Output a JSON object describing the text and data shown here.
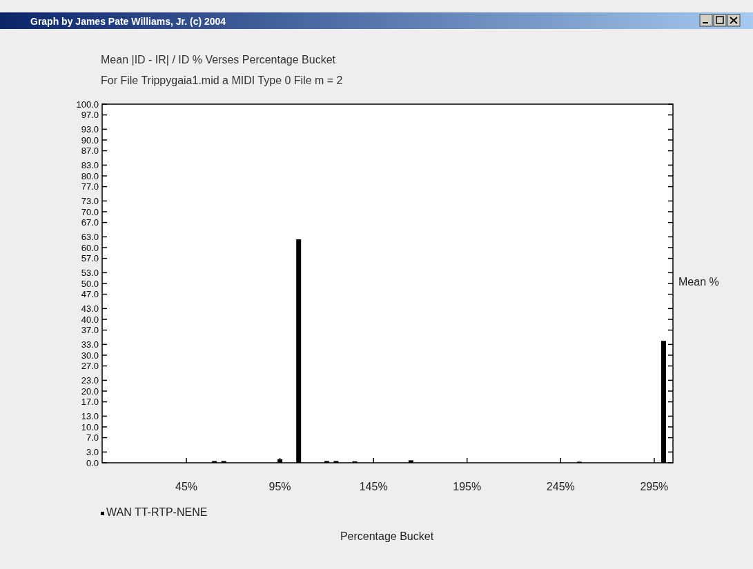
{
  "chart_data": {
    "type": "bar",
    "title": "Mean |ID - IR| / ID % Verses Percentage Bucket",
    "subtitle": "For File Trippygaia1.mid a MIDI Type 0 File m = 2",
    "xlabel": "Percentage Bucket",
    "ylabel": "Mean %",
    "annotations": [
      "Graph by James Pate Williams, Jr. (c) 2004"
    ],
    "x": [
      60,
      65,
      95,
      105,
      120,
      125,
      135,
      165,
      255,
      300
    ],
    "series": [
      {
        "name": "WAN TT-RTP-NENE",
        "color": "#000000",
        "values": [
          0.5,
          0.5,
          1.0,
          62.3,
          0.5,
          0.5,
          0.4,
          0.7,
          0.3,
          34.0
        ]
      }
    ],
    "xlim": [
      0,
      305
    ],
    "xticks": [
      {
        "value": 45,
        "label": "45%"
      },
      {
        "value": 95,
        "label": "95%"
      },
      {
        "value": 145,
        "label": "145%"
      },
      {
        "value": 195,
        "label": "195%"
      },
      {
        "value": 245,
        "label": "245%"
      },
      {
        "value": 295,
        "label": "295%"
      }
    ],
    "ylim": [
      0,
      100
    ],
    "yticks": [
      {
        "value": 0,
        "label": "0.0"
      },
      {
        "value": 3,
        "label": "3.0"
      },
      {
        "value": 7,
        "label": "7.0"
      },
      {
        "value": 10,
        "label": "10.0"
      },
      {
        "value": 13,
        "label": "13.0"
      },
      {
        "value": 17,
        "label": "17.0"
      },
      {
        "value": 20,
        "label": "20.0"
      },
      {
        "value": 23,
        "label": "23.0"
      },
      {
        "value": 27,
        "label": "27.0"
      },
      {
        "value": 30,
        "label": "30.0"
      },
      {
        "value": 33,
        "label": "33.0"
      },
      {
        "value": 37,
        "label": "37.0"
      },
      {
        "value": 40,
        "label": "40.0"
      },
      {
        "value": 43,
        "label": "43.0"
      },
      {
        "value": 47,
        "label": "47.0"
      },
      {
        "value": 50,
        "label": "50.0"
      },
      {
        "value": 53,
        "label": "53.0"
      },
      {
        "value": 57,
        "label": "57.0"
      },
      {
        "value": 60,
        "label": "60.0"
      },
      {
        "value": 63,
        "label": "63.0"
      },
      {
        "value": 67,
        "label": "67.0"
      },
      {
        "value": 70,
        "label": "70.0"
      },
      {
        "value": 73,
        "label": "73.0"
      },
      {
        "value": 77,
        "label": "77.0"
      },
      {
        "value": 80,
        "label": "80.0"
      },
      {
        "value": 83,
        "label": "83.0"
      },
      {
        "value": 87,
        "label": "87.0"
      },
      {
        "value": 90,
        "label": "90.0"
      },
      {
        "value": 93,
        "label": "93.0"
      },
      {
        "value": 97,
        "label": "97.0"
      },
      {
        "value": 100,
        "label": "100.0"
      }
    ],
    "grid": false,
    "legend": "bottom left"
  }
}
